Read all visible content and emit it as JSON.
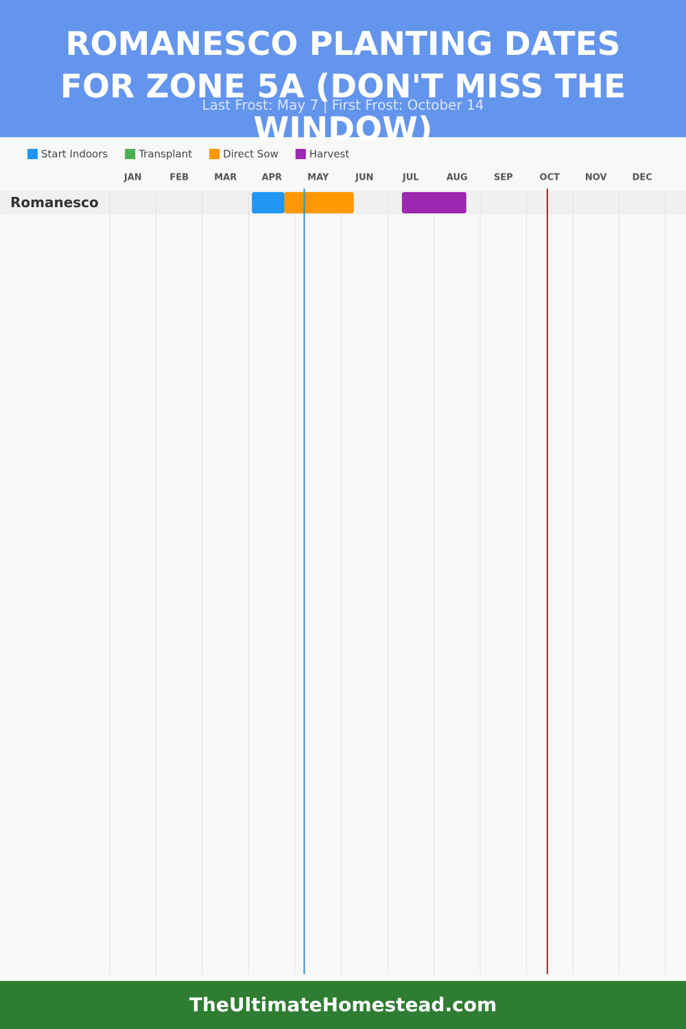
{
  "chart_data": {
    "type": "gantt",
    "title": "ROMANESCO PLANTING DATES FOR ZONE 5A (DON'T MISS THE WINDOW)",
    "subtitle": "Last Frost: May 7 | First Frost: October 14",
    "categories": [
      "JAN",
      "FEB",
      "MAR",
      "APR",
      "MAY",
      "JUN",
      "JUL",
      "AUG",
      "SEP",
      "OCT",
      "NOV",
      "DEC"
    ],
    "xlim": [
      0,
      12
    ],
    "rows": [
      "Romanesco"
    ],
    "series": [
      {
        "name": "Start Indoors",
        "color": "#2196f3",
        "ranges": [
          [
            3.07,
            3.77
          ]
        ]
      },
      {
        "name": "Transplant",
        "color": "#4caf50",
        "ranges": []
      },
      {
        "name": "Direct Sow",
        "color": "#ff9800",
        "ranges": [
          [
            3.77,
            5.27
          ]
        ]
      },
      {
        "name": "Harvest",
        "color": "#9c27b0",
        "ranges": [
          [
            6.31,
            7.7
          ]
        ]
      }
    ],
    "markers": [
      {
        "value": 4.2,
        "color": "#2a8fd0"
      },
      {
        "value": 9.45,
        "color": "#a31f1f"
      }
    ],
    "grid": true
  },
  "footer": "TheUltimateHomestead.com"
}
